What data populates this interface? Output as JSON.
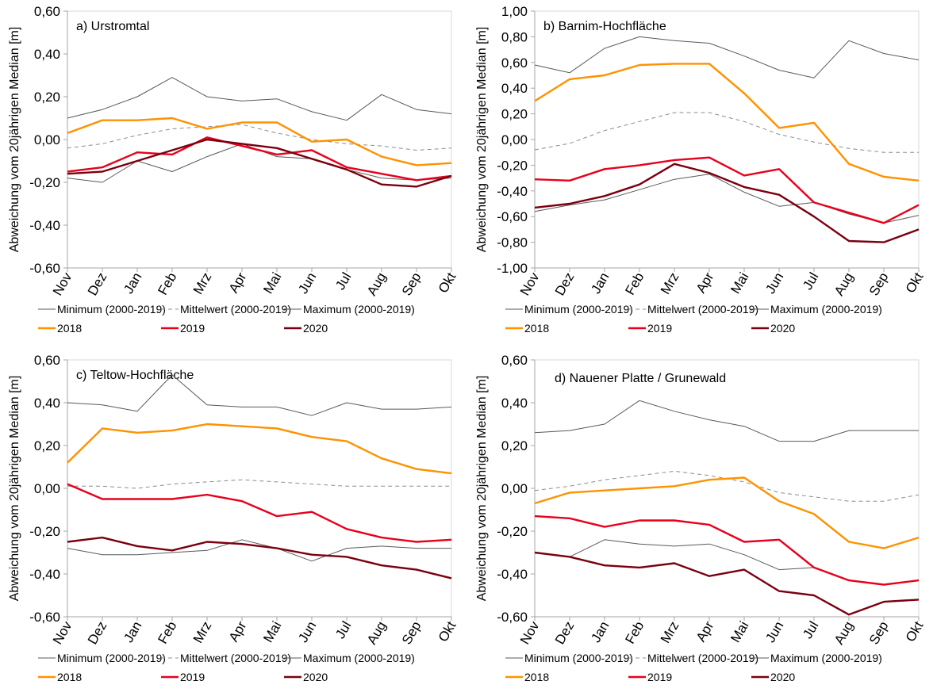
{
  "chart_data": {
    "type": "line",
    "categories": [
      "Nov",
      "Dez",
      "Jan",
      "Feb",
      "Mrz",
      "Apr",
      "Mai",
      "Jun",
      "Jul",
      "Aug",
      "Sep",
      "Okt"
    ],
    "ylabel": "Abweichung vom 20jährigen Median [m]",
    "grid": false,
    "legend_placement": "bottom",
    "series_styles": [
      {
        "name": "Minimum (2000-2019)",
        "color": "#595959",
        "dash": false,
        "width": "thin"
      },
      {
        "name": "Mittelwert (2000-2019)",
        "color": "#8c8c8c",
        "dash": true,
        "width": "thin"
      },
      {
        "name": "Maximum (2000-2019)",
        "color": "#595959",
        "dash": false,
        "width": "thin"
      },
      {
        "name": "2018",
        "color": "#ff9200",
        "dash": false,
        "width": "thick"
      },
      {
        "name": "2019",
        "color": "#e8001c",
        "dash": false,
        "width": "thick"
      },
      {
        "name": "2020",
        "color": "#7a0010",
        "dash": false,
        "width": "thick"
      }
    ],
    "panels": [
      {
        "title": "a) Urstromtal",
        "ylim": [
          -0.6,
          0.6
        ],
        "yticks": [
          "0,60",
          "0,40",
          "0,20",
          "0,00",
          "-0,20",
          "-0,40",
          "-0,60"
        ],
        "series": [
          {
            "name": "Minimum (2000-2019)",
            "values": [
              -0.18,
              -0.2,
              -0.1,
              -0.15,
              -0.08,
              -0.02,
              -0.08,
              -0.09,
              -0.14,
              -0.18,
              -0.19,
              -0.18
            ]
          },
          {
            "name": "Mittelwert (2000-2019)",
            "values": [
              -0.04,
              -0.02,
              0.02,
              0.05,
              0.06,
              0.07,
              0.03,
              0.0,
              -0.02,
              -0.03,
              -0.05,
              -0.04
            ]
          },
          {
            "name": "Maximum (2000-2019)",
            "values": [
              0.1,
              0.14,
              0.2,
              0.29,
              0.2,
              0.18,
              0.19,
              0.13,
              0.09,
              0.21,
              0.14,
              0.12
            ]
          },
          {
            "name": "2018",
            "values": [
              0.03,
              0.09,
              0.09,
              0.1,
              0.05,
              0.08,
              0.08,
              -0.01,
              0.0,
              -0.08,
              -0.12,
              -0.11
            ]
          },
          {
            "name": "2019",
            "values": [
              -0.15,
              -0.13,
              -0.06,
              -0.07,
              0.01,
              -0.03,
              -0.07,
              -0.05,
              -0.13,
              -0.16,
              -0.19,
              -0.17
            ]
          },
          {
            "name": "2020",
            "values": [
              -0.16,
              -0.15,
              -0.1,
              -0.05,
              0.0,
              -0.02,
              -0.04,
              -0.09,
              -0.14,
              -0.21,
              -0.22,
              -0.17
            ]
          }
        ]
      },
      {
        "title": "b) Barnim-Hochfläche",
        "ylim": [
          -1.0,
          1.0
        ],
        "yticks": [
          "1,00",
          "0,80",
          "0,60",
          "0,40",
          "0,20",
          "0,00",
          "-0,20",
          "-0,40",
          "-0,60",
          "-0,80",
          "-1,00"
        ],
        "series": [
          {
            "name": "Minimum (2000-2019)",
            "values": [
              -0.56,
              -0.51,
              -0.47,
              -0.39,
              -0.31,
              -0.27,
              -0.41,
              -0.52,
              -0.49,
              -0.58,
              -0.65,
              -0.59
            ]
          },
          {
            "name": "Mittelwert (2000-2019)",
            "values": [
              -0.08,
              -0.03,
              0.07,
              0.14,
              0.21,
              0.21,
              0.14,
              0.04,
              -0.02,
              -0.07,
              -0.1,
              -0.1
            ]
          },
          {
            "name": "Maximum (2000-2019)",
            "values": [
              0.58,
              0.52,
              0.71,
              0.8,
              0.77,
              0.75,
              0.65,
              0.54,
              0.48,
              0.77,
              0.67,
              0.62
            ]
          },
          {
            "name": "2018",
            "values": [
              0.3,
              0.47,
              0.5,
              0.58,
              0.59,
              0.59,
              0.36,
              0.09,
              0.13,
              -0.19,
              -0.29,
              -0.32
            ]
          },
          {
            "name": "2019",
            "values": [
              -0.31,
              -0.32,
              -0.23,
              -0.2,
              -0.16,
              -0.14,
              -0.28,
              -0.23,
              -0.49,
              -0.57,
              -0.65,
              -0.51
            ]
          },
          {
            "name": "2020",
            "values": [
              -0.53,
              -0.5,
              -0.44,
              -0.35,
              -0.19,
              -0.26,
              -0.37,
              -0.43,
              -0.6,
              -0.79,
              -0.8,
              -0.7
            ]
          }
        ]
      },
      {
        "title": "c) Teltow-Hochfläche",
        "ylim": [
          -0.6,
          0.6
        ],
        "yticks": [
          "0,60",
          "0,40",
          "0,20",
          "0,00",
          "-0,20",
          "-0,40",
          "-0,60"
        ],
        "series": [
          {
            "name": "Minimum (2000-2019)",
            "values": [
              -0.28,
              -0.31,
              -0.31,
              -0.3,
              -0.29,
              -0.24,
              -0.28,
              -0.34,
              -0.28,
              -0.27,
              -0.28,
              -0.28
            ]
          },
          {
            "name": "Mittelwert (2000-2019)",
            "values": [
              0.01,
              0.01,
              0.0,
              0.02,
              0.03,
              0.04,
              0.03,
              0.02,
              0.01,
              0.01,
              0.01,
              0.01
            ]
          },
          {
            "name": "Maximum (2000-2019)",
            "values": [
              0.4,
              0.39,
              0.36,
              0.53,
              0.39,
              0.38,
              0.38,
              0.34,
              0.4,
              0.37,
              0.37,
              0.38
            ]
          },
          {
            "name": "2018",
            "values": [
              0.12,
              0.28,
              0.26,
              0.27,
              0.3,
              0.29,
              0.28,
              0.24,
              0.22,
              0.14,
              0.09,
              0.07
            ]
          },
          {
            "name": "2019",
            "values": [
              0.02,
              -0.05,
              -0.05,
              -0.05,
              -0.03,
              -0.06,
              -0.13,
              -0.11,
              -0.19,
              -0.23,
              -0.25,
              -0.24
            ]
          },
          {
            "name": "2020",
            "values": [
              -0.25,
              -0.23,
              -0.27,
              -0.29,
              -0.25,
              -0.26,
              -0.28,
              -0.31,
              -0.32,
              -0.36,
              -0.38,
              -0.42
            ]
          }
        ]
      },
      {
        "title": "d) Nauener Platte / Grunewald",
        "ylim": [
          -0.6,
          0.6
        ],
        "yticks": [
          "0,60",
          "0,40",
          "0,20",
          "0,00",
          "-0,20",
          "-0,40",
          "-0,60"
        ],
        "series": [
          {
            "name": "Minimum (2000-2019)",
            "values": [
              -0.3,
              -0.32,
              -0.24,
              -0.26,
              -0.27,
              -0.26,
              -0.31,
              -0.38,
              -0.37,
              -0.43,
              -0.45,
              -0.43
            ]
          },
          {
            "name": "Mittelwert (2000-2019)",
            "values": [
              -0.01,
              0.01,
              0.04,
              0.06,
              0.08,
              0.06,
              0.03,
              -0.02,
              -0.04,
              -0.06,
              -0.06,
              -0.03
            ]
          },
          {
            "name": "Maximum (2000-2019)",
            "values": [
              0.26,
              0.27,
              0.3,
              0.41,
              0.36,
              0.32,
              0.29,
              0.22,
              0.22,
              0.27,
              0.27,
              0.27
            ]
          },
          {
            "name": "2018",
            "values": [
              -0.07,
              -0.02,
              -0.01,
              0.0,
              0.01,
              0.04,
              0.05,
              -0.06,
              -0.12,
              -0.25,
              -0.28,
              -0.23
            ]
          },
          {
            "name": "2019",
            "values": [
              -0.13,
              -0.14,
              -0.18,
              -0.15,
              -0.15,
              -0.17,
              -0.25,
              -0.24,
              -0.37,
              -0.43,
              -0.45,
              -0.43
            ]
          },
          {
            "name": "2020",
            "values": [
              -0.3,
              -0.32,
              -0.36,
              -0.37,
              -0.35,
              -0.41,
              -0.38,
              -0.48,
              -0.5,
              -0.59,
              -0.53,
              -0.52
            ]
          }
        ]
      }
    ]
  }
}
